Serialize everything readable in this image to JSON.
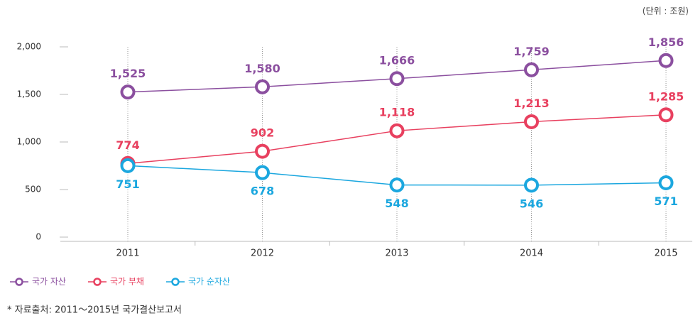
{
  "chart_data": {
    "type": "line",
    "unit_note": "(단위 : 조원)",
    "categories": [
      "2011",
      "2012",
      "2013",
      "2014",
      "2015"
    ],
    "series": [
      {
        "name": "국가 자산",
        "color": "#8b4f9f",
        "values": [
          1525,
          1580,
          1666,
          1759,
          1856
        ],
        "value_labels": [
          "1,525",
          "1,580",
          "1,666",
          "1,759",
          "1,856"
        ]
      },
      {
        "name": "국가 부채",
        "color": "#e8405f",
        "values": [
          774,
          902,
          1118,
          1213,
          1285
        ],
        "value_labels": [
          "774",
          "902",
          "1,118",
          "1,213",
          "1,285"
        ]
      },
      {
        "name": "국가 순자산",
        "color": "#1ba7df",
        "values": [
          751,
          678,
          548,
          546,
          571
        ],
        "value_labels": [
          "751",
          "678",
          "548",
          "546",
          "571"
        ]
      }
    ],
    "ylim": [
      0,
      2000
    ],
    "yticks": [
      0,
      500,
      {
        "value": 1000,
        "label": "1,000"
      },
      {
        "value": 1500,
        "label": "1,500"
      },
      {
        "value": 2000,
        "label": "2,000"
      }
    ],
    "source": "* 자료출처: 2011～2015년 국가결산보고서"
  }
}
